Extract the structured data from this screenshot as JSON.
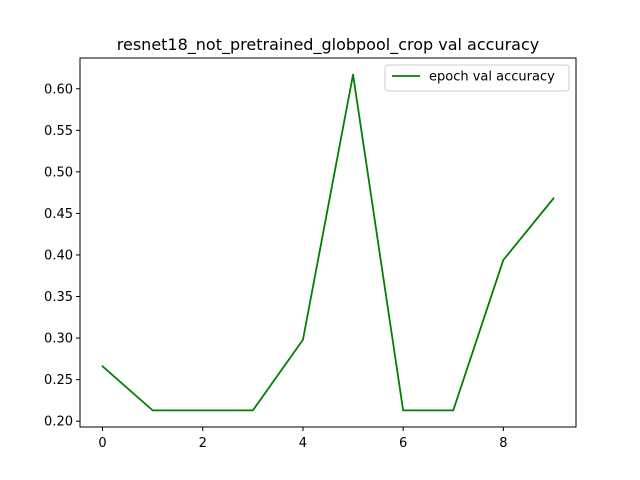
{
  "chart_data": {
    "type": "line",
    "title": "resnet18_not_pretrained_globpool_crop val accuracy",
    "xlabel": "",
    "ylabel": "",
    "x": [
      0,
      1,
      2,
      3,
      4,
      5,
      6,
      7,
      8,
      9
    ],
    "series": [
      {
        "name": "epoch val accuracy",
        "color": "#008000",
        "values": [
          0.266,
          0.213,
          0.213,
          0.213,
          0.298,
          0.617,
          0.213,
          0.213,
          0.394,
          0.468
        ]
      }
    ],
    "xlim": [
      -0.45,
      9.45
    ],
    "ylim": [
      0.193,
      0.637
    ],
    "x_ticks": [
      "0",
      "2",
      "4",
      "6",
      "8"
    ],
    "y_ticks": [
      "0.20",
      "0.25",
      "0.30",
      "0.35",
      "0.40",
      "0.45",
      "0.50",
      "0.55",
      "0.60"
    ],
    "grid": false,
    "legend_position": "upper right"
  }
}
